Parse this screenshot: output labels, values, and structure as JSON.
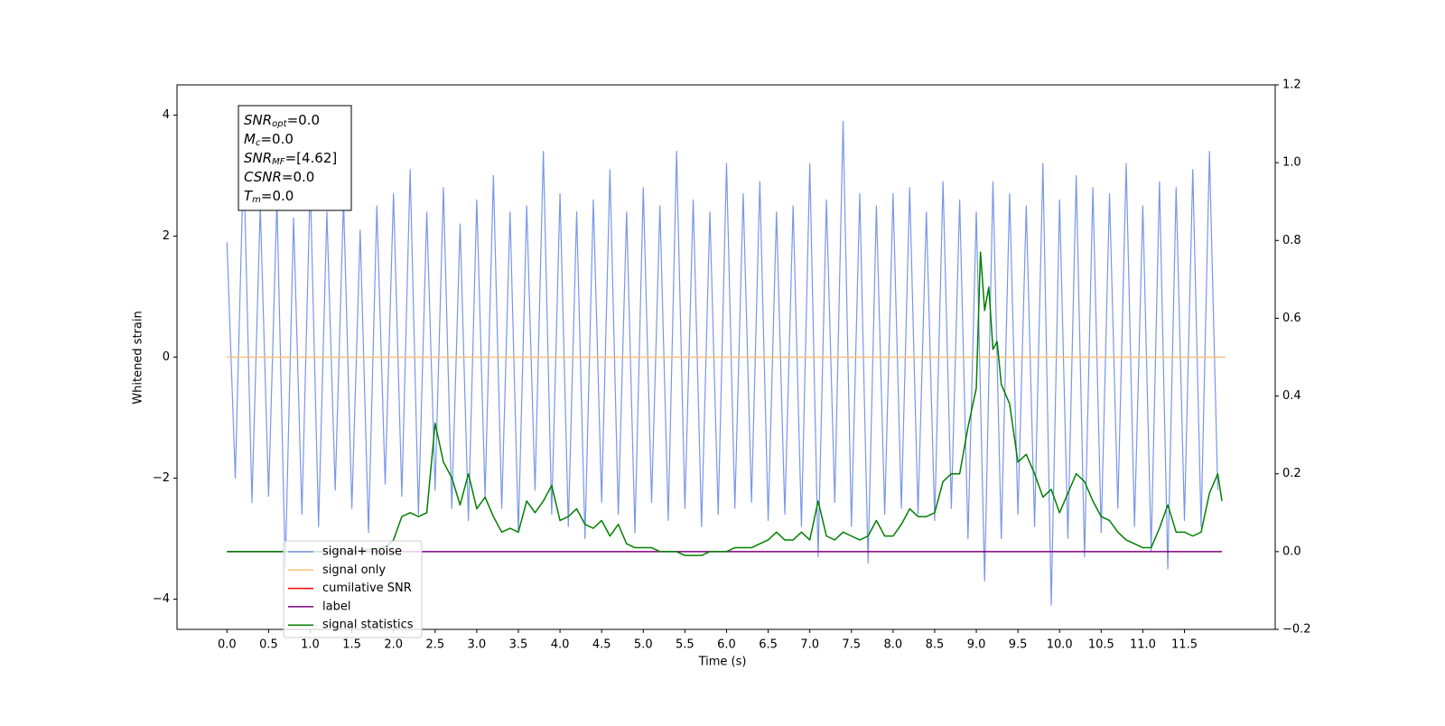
{
  "chart_data": {
    "type": "line",
    "xlabel": "Time (s)",
    "ylabel": "Whitened strain",
    "xlim": [
      -0.6,
      12.59
    ],
    "ylim": [
      -4.5,
      4.5
    ],
    "y2lim": [
      -0.2,
      1.2
    ],
    "xticks": [
      {
        "value": 0,
        "label": "0.0"
      },
      0.5,
      {
        "value": 1,
        "label": "1.0"
      },
      1.5,
      {
        "value": 2,
        "label": "2.0"
      },
      2.5,
      {
        "value": 3,
        "label": "3.0"
      },
      3.5,
      {
        "value": 4,
        "label": "4.0"
      },
      4.5,
      {
        "value": 5,
        "label": "5.0"
      },
      5.5,
      {
        "value": 6,
        "label": "6.0"
      },
      6.5,
      {
        "value": 7,
        "label": "7.0"
      },
      7.5,
      {
        "value": 8,
        "label": "8.0"
      },
      8.5,
      {
        "value": 9,
        "label": "9.0"
      },
      9.5,
      {
        "value": 10,
        "label": "10.0"
      },
      10.5,
      {
        "value": 11,
        "label": "11.0"
      },
      11.5
    ],
    "yticks": [
      {
        "value": -4,
        "label": "−4"
      },
      {
        "value": -2,
        "label": "−2"
      },
      0,
      2,
      4
    ],
    "y2ticks": [
      {
        "value": -0.2,
        "label": "−0.2"
      },
      {
        "value": 0,
        "label": "0.0"
      },
      0.2,
      0.4,
      0.6,
      0.8,
      {
        "value": 1,
        "label": "1.0"
      },
      1.2
    ],
    "annotation": [
      {
        "main": "SNR",
        "sub": "opt",
        "rest": "=0.0"
      },
      {
        "main": "M",
        "sub": "c",
        "rest": "=0.0"
      },
      {
        "main": "SNR",
        "sub": "MF",
        "rest": "=[4.62]"
      },
      {
        "main": "CSNR",
        "rest": "=0.0"
      },
      {
        "main": "T",
        "sub": "m",
        "rest": "=0.0"
      }
    ],
    "series": [
      {
        "name": "signal+ noise",
        "color": "#7a96e9",
        "x": [
          0.0,
          0.1,
          0.2,
          0.3,
          0.4,
          0.5,
          0.6,
          0.7,
          0.8,
          0.9,
          1.0,
          1.1,
          1.2,
          1.3,
          1.4,
          1.5,
          1.6,
          1.7,
          1.8,
          1.9,
          2.0,
          2.1,
          2.2,
          2.3,
          2.4,
          2.5,
          2.6,
          2.7,
          2.8,
          2.9,
          3.0,
          3.1,
          3.2,
          3.3,
          3.4,
          3.5,
          3.6,
          3.7,
          3.8,
          3.9,
          4.0,
          4.1,
          4.2,
          4.3,
          4.4,
          4.5,
          4.6,
          4.7,
          4.8,
          4.9,
          5.0,
          5.1,
          5.2,
          5.3,
          5.4,
          5.5,
          5.6,
          5.7,
          5.8,
          5.9,
          6.0,
          6.1,
          6.2,
          6.3,
          6.4,
          6.5,
          6.6,
          6.7,
          6.8,
          6.9,
          7.0,
          7.1,
          7.2,
          7.3,
          7.4,
          7.5,
          7.6,
          7.7,
          7.8,
          7.9,
          8.0,
          8.1,
          8.2,
          8.3,
          8.4,
          8.5,
          8.6,
          8.7,
          8.8,
          8.9,
          9.0,
          9.1,
          9.2,
          9.3,
          9.4,
          9.5,
          9.6,
          9.7,
          9.8,
          9.9,
          10.0,
          10.1,
          10.2,
          10.3,
          10.4,
          10.5,
          10.6,
          10.7,
          10.8,
          10.9,
          11.0,
          11.1,
          11.2,
          11.3,
          11.4,
          11.5,
          11.6,
          11.7,
          11.8,
          11.9
        ],
        "values": [
          1.9,
          -2.0,
          3.3,
          -2.4,
          2.5,
          -2.3,
          2.6,
          -3.5,
          2.3,
          -2.6,
          2.9,
          -2.8,
          2.4,
          -2.2,
          2.6,
          -2.5,
          2.1,
          -2.9,
          2.5,
          -2.1,
          2.7,
          -2.3,
          3.1,
          -2.6,
          2.4,
          -2.2,
          2.8,
          -2.5,
          2.2,
          -2.7,
          2.6,
          -2.3,
          3.0,
          -2.5,
          2.4,
          -2.9,
          2.5,
          -2.2,
          3.4,
          -2.6,
          2.7,
          -2.8,
          2.4,
          -3.0,
          2.6,
          -2.4,
          3.1,
          -2.6,
          2.4,
          -2.9,
          2.8,
          -2.4,
          2.5,
          -2.7,
          3.4,
          -2.5,
          2.6,
          -2.8,
          2.4,
          -2.6,
          3.2,
          -2.5,
          2.7,
          -2.4,
          2.9,
          -2.7,
          2.4,
          -2.6,
          2.5,
          -2.8,
          3.2,
          -3.3,
          2.6,
          -2.4,
          3.9,
          -2.8,
          2.7,
          -3.4,
          2.5,
          -2.6,
          2.7,
          -2.5,
          2.8,
          -2.6,
          2.4,
          -2.7,
          2.9,
          -2.5,
          2.6,
          -3.0,
          2.4,
          -3.7,
          2.9,
          -3.0,
          2.7,
          -2.6,
          2.5,
          -2.8,
          3.2,
          -4.1,
          2.6,
          -3.0,
          3.0,
          -3.3,
          2.8,
          -2.9,
          2.7,
          -2.5,
          3.2,
          -2.8,
          2.5,
          -3.2,
          2.9,
          -3.5,
          2.8,
          -2.7,
          3.1,
          -2.8,
          3.4,
          -2.2
        ]
      },
      {
        "name": "signal only",
        "color": "#f7c27a",
        "x": [
          0.0,
          11.99
        ],
        "values": [
          0,
          0
        ]
      },
      {
        "name": "cumilative SNR",
        "color": "red",
        "x": [],
        "values": []
      },
      {
        "name": "label",
        "color": "purple",
        "axis": "y2",
        "x": [
          0.0,
          11.95
        ],
        "values": [
          0,
          0
        ]
      },
      {
        "name": "signal statistics",
        "color": "green",
        "axis": "y2",
        "x": [
          0.0,
          0.5,
          1.0,
          1.5,
          1.9,
          2.0,
          2.1,
          2.2,
          2.3,
          2.4,
          2.5,
          2.6,
          2.7,
          2.8,
          2.9,
          3.0,
          3.1,
          3.2,
          3.3,
          3.4,
          3.5,
          3.6,
          3.7,
          3.8,
          3.9,
          4.0,
          4.1,
          4.2,
          4.3,
          4.4,
          4.5,
          4.6,
          4.7,
          4.8,
          4.9,
          5.0,
          5.1,
          5.2,
          5.3,
          5.4,
          5.5,
          5.6,
          5.7,
          5.8,
          5.9,
          6.0,
          6.1,
          6.2,
          6.3,
          6.4,
          6.5,
          6.6,
          6.7,
          6.8,
          6.9,
          7.0,
          7.1,
          7.2,
          7.3,
          7.4,
          7.5,
          7.6,
          7.7,
          7.8,
          7.9,
          8.0,
          8.1,
          8.2,
          8.3,
          8.4,
          8.5,
          8.6,
          8.7,
          8.8,
          8.9,
          9.0,
          9.05,
          9.1,
          9.15,
          9.2,
          9.25,
          9.3,
          9.4,
          9.5,
          9.6,
          9.7,
          9.8,
          9.9,
          10.0,
          10.1,
          10.2,
          10.3,
          10.4,
          10.5,
          10.6,
          10.7,
          10.8,
          10.9,
          11.0,
          11.1,
          11.2,
          11.3,
          11.4,
          11.5,
          11.6,
          11.7,
          11.8,
          11.9,
          11.95
        ],
        "values": [
          0.0,
          0.0,
          0.0,
          0.0,
          0.01,
          0.03,
          0.09,
          0.1,
          0.09,
          0.1,
          0.33,
          0.23,
          0.19,
          0.12,
          0.2,
          0.11,
          0.14,
          0.09,
          0.05,
          0.06,
          0.05,
          0.13,
          0.1,
          0.13,
          0.17,
          0.08,
          0.09,
          0.11,
          0.07,
          0.06,
          0.08,
          0.04,
          0.07,
          0.02,
          0.01,
          0.01,
          0.01,
          0.0,
          0.0,
          0.0,
          -0.01,
          -0.01,
          -0.01,
          0.0,
          0.0,
          0.0,
          0.01,
          0.01,
          0.01,
          0.02,
          0.03,
          0.05,
          0.03,
          0.03,
          0.05,
          0.03,
          0.13,
          0.04,
          0.03,
          0.05,
          0.04,
          0.03,
          0.04,
          0.08,
          0.04,
          0.04,
          0.07,
          0.11,
          0.09,
          0.09,
          0.1,
          0.18,
          0.2,
          0.2,
          0.32,
          0.42,
          0.77,
          0.62,
          0.68,
          0.52,
          0.54,
          0.43,
          0.38,
          0.23,
          0.25,
          0.2,
          0.14,
          0.16,
          0.1,
          0.15,
          0.2,
          0.18,
          0.13,
          0.09,
          0.08,
          0.05,
          0.03,
          0.02,
          0.01,
          0.01,
          0.06,
          0.12,
          0.05,
          0.05,
          0.04,
          0.05,
          0.15,
          0.2,
          0.13
        ]
      }
    ]
  }
}
